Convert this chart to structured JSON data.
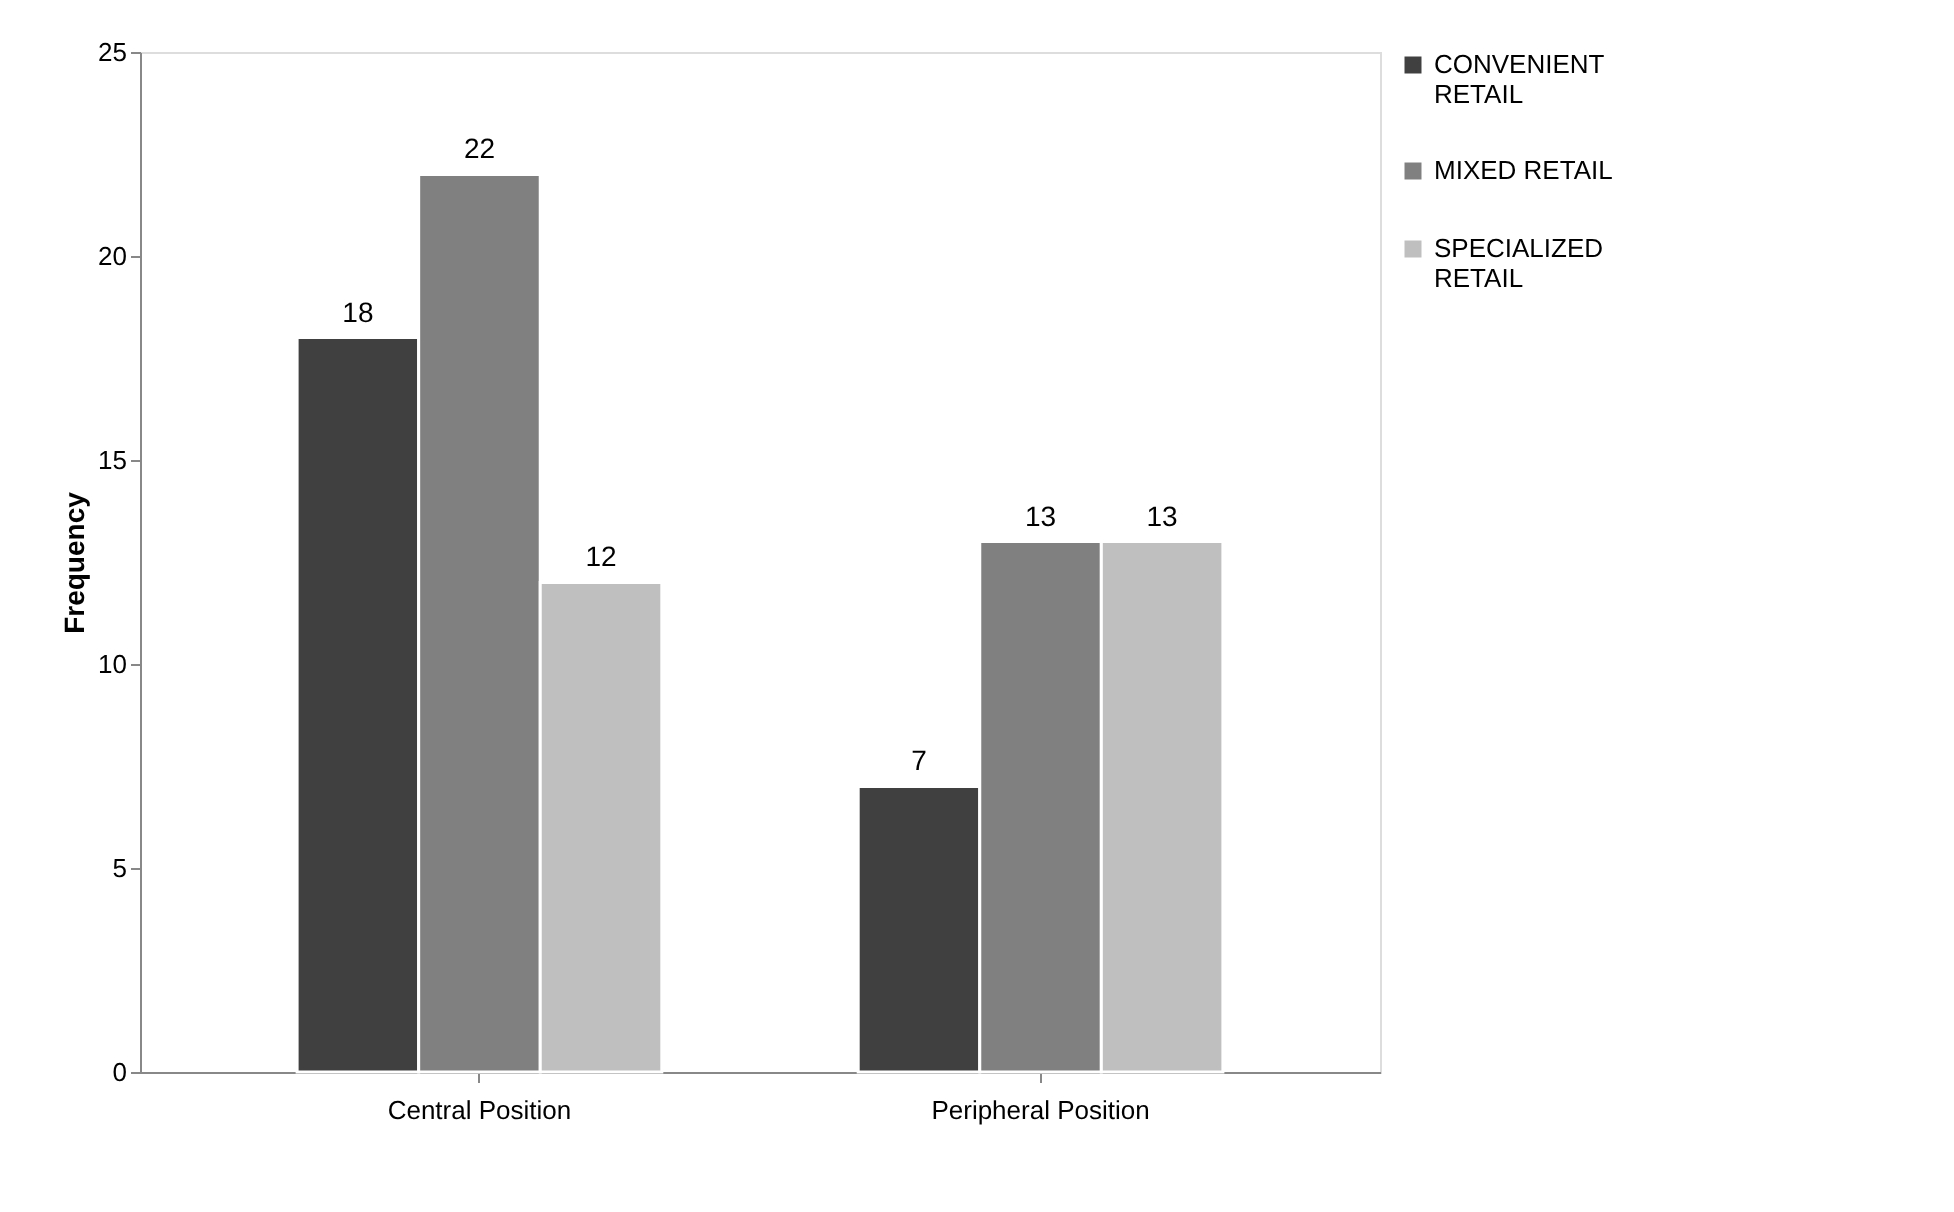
{
  "chart_data": {
    "type": "bar",
    "ylabel": "Frequency",
    "categories": [
      "Central Position",
      "Peripheral Position"
    ],
    "series": [
      {
        "name": "CONVENIENT RETAIL",
        "color": "#404040",
        "values": [
          18,
          7
        ]
      },
      {
        "name": "MIXED RETAIL",
        "color": "#808080",
        "values": [
          22,
          13
        ]
      },
      {
        "name": "SPECIALIZED RETAIL",
        "color": "#bfbfbf",
        "values": [
          12,
          13
        ]
      }
    ],
    "ylim": [
      0,
      25
    ],
    "yticks": [
      0,
      5,
      10,
      15,
      20,
      25
    ],
    "grid": false,
    "legend": "right",
    "data_labels": true
  }
}
